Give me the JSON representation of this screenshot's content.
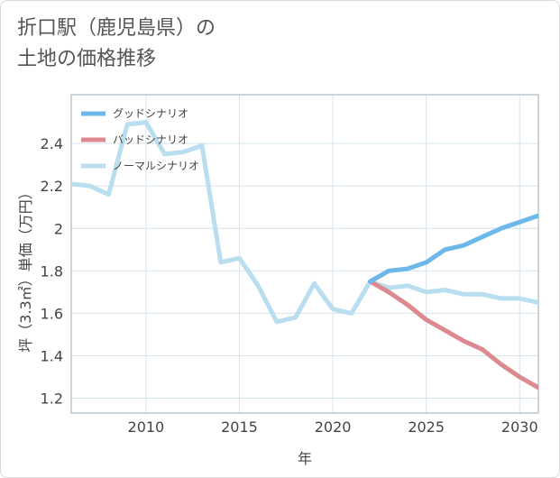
{
  "title_line1": "折口駅（鹿児島県）の",
  "title_line2": "土地の価格推移",
  "chart_data": {
    "type": "line",
    "title": "折口駅（鹿児島県）の土地の価格推移",
    "xlabel": "年",
    "ylabel": "坪（3.3㎡）単価（万円）",
    "xlim": [
      2006,
      2031
    ],
    "ylim": [
      1.13,
      2.63
    ],
    "xticks": [
      2010,
      2015,
      2020,
      2025,
      2030
    ],
    "yticks": [
      1.2,
      1.4,
      1.6,
      1.8,
      2,
      2.2,
      2.4
    ],
    "legend_position": "top-left",
    "series": [
      {
        "name": "グッドシナリオ",
        "color": "#6cb8ea",
        "x": [
          2022,
          2023,
          2024,
          2025,
          2026,
          2027,
          2028,
          2029,
          2030,
          2031
        ],
        "values": [
          1.75,
          1.8,
          1.81,
          1.84,
          1.9,
          1.92,
          1.96,
          2.0,
          2.03,
          2.06
        ]
      },
      {
        "name": "バッドシナリオ",
        "color": "#dc8a90",
        "x": [
          2022,
          2023,
          2024,
          2025,
          2026,
          2027,
          2028,
          2029,
          2030,
          2031
        ],
        "values": [
          1.75,
          1.7,
          1.64,
          1.57,
          1.52,
          1.47,
          1.43,
          1.36,
          1.3,
          1.25
        ]
      },
      {
        "name": "ノーマルシナリオ",
        "color": "#b9def0",
        "x": [
          2006,
          2007,
          2008,
          2009,
          2010,
          2011,
          2012,
          2013,
          2014,
          2015,
          2016,
          2017,
          2018,
          2019,
          2020,
          2021,
          2022,
          2023,
          2024,
          2025,
          2026,
          2027,
          2028,
          2029,
          2030,
          2031
        ],
        "values": [
          2.21,
          2.2,
          2.16,
          2.49,
          2.5,
          2.35,
          2.36,
          2.39,
          1.84,
          1.86,
          1.73,
          1.56,
          1.58,
          1.74,
          1.62,
          1.6,
          1.75,
          1.72,
          1.73,
          1.7,
          1.71,
          1.69,
          1.69,
          1.67,
          1.67,
          1.65
        ]
      }
    ]
  }
}
